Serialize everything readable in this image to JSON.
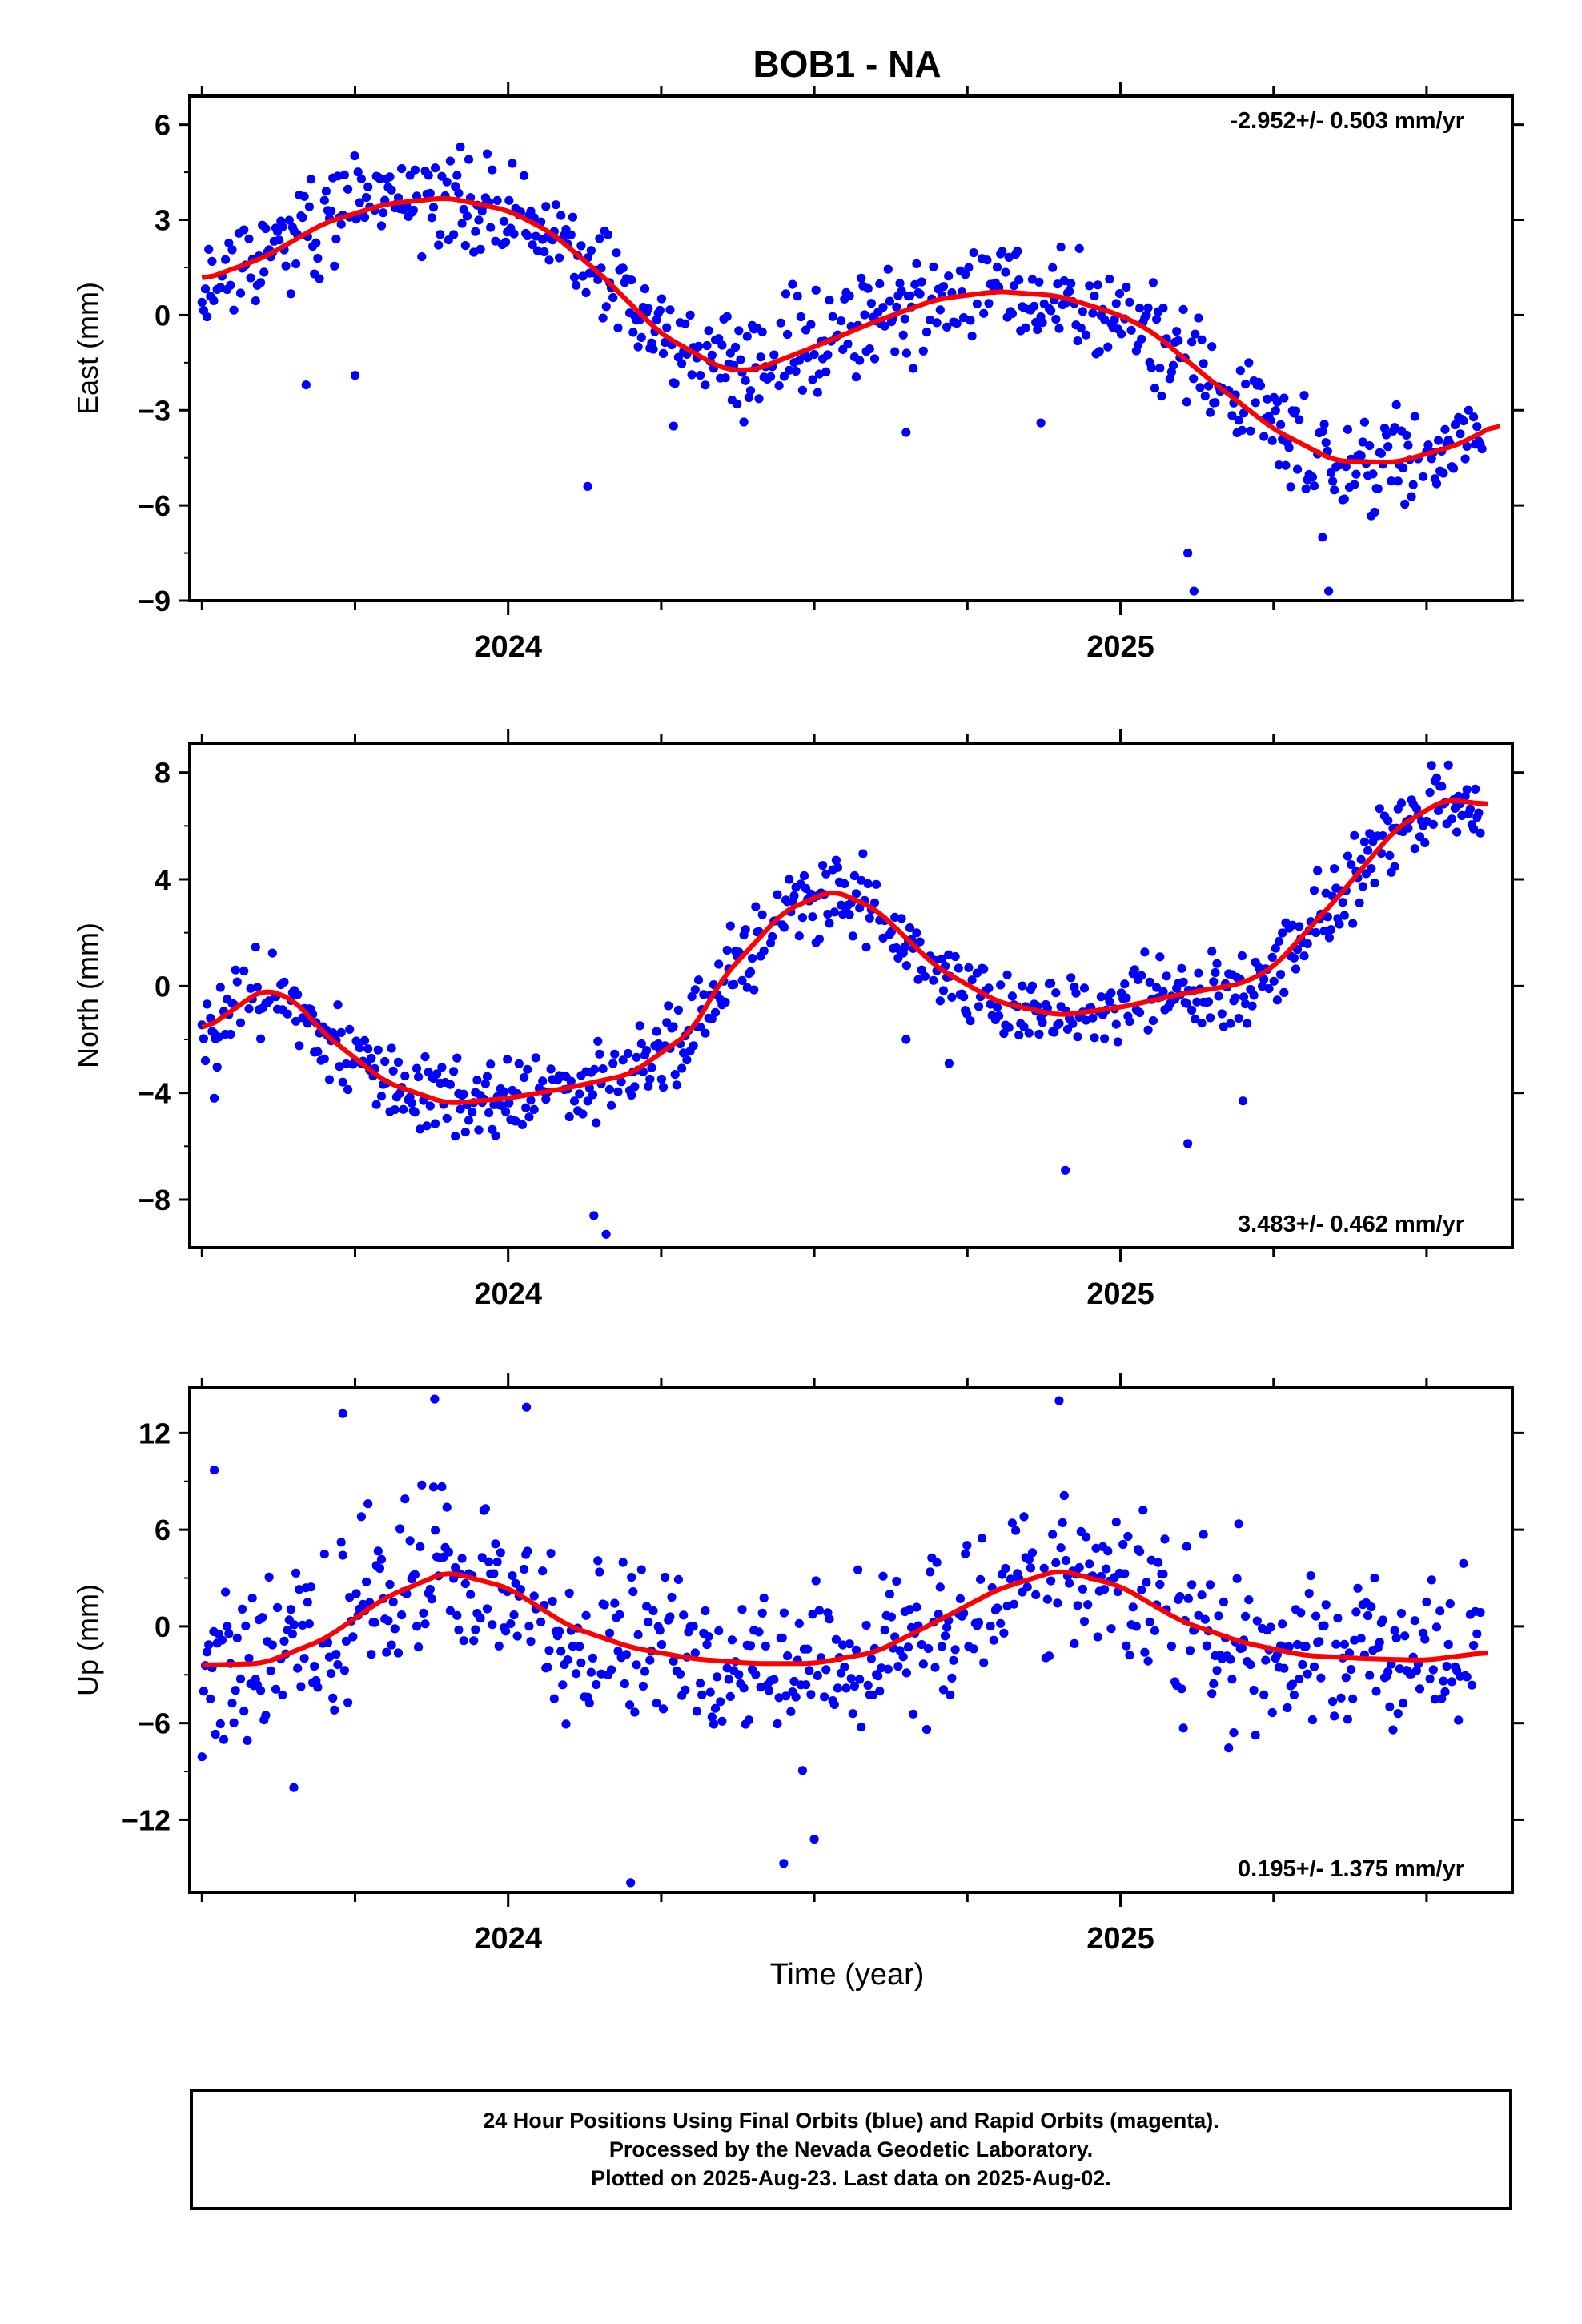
{
  "title": "BOB1 - NA",
  "time_label": "Time (year)",
  "footer": {
    "line1": "24 Hour Positions Using Final Orbits (blue) and Rapid Orbits (magenta).",
    "line2": "Processed by the Nevada Geodetic Laboratory.",
    "line3": "Plotted on 2025-Aug-23. Last data on 2025-Aug-02."
  },
  "colors": {
    "points": "#0000ff",
    "model": "#ff0000",
    "frame": "#000000"
  },
  "chart_data": [
    {
      "type": "scatter",
      "component": "east",
      "ylabel": "East (mm)",
      "ylim": [
        -9,
        6.9
      ],
      "yticks": [
        -9,
        -6,
        -3,
        0,
        3,
        6
      ],
      "xlim": [
        2023.48,
        2025.64
      ],
      "xticks": [
        2024,
        2025
      ],
      "rate_label": "-2.952+/- 0.503 mm/yr",
      "rate_position": "top-right",
      "seed": 11,
      "scatter_sd": 1.05,
      "model_curve": [
        [
          2023.5,
          1.1
        ],
        [
          2023.6,
          1.8
        ],
        [
          2023.7,
          2.9
        ],
        [
          2023.8,
          3.5
        ],
        [
          2023.9,
          3.7
        ],
        [
          2024.0,
          3.3
        ],
        [
          2024.07,
          2.6
        ],
        [
          2024.15,
          1.3
        ],
        [
          2024.25,
          -0.6
        ],
        [
          2024.35,
          -1.7
        ],
        [
          2024.4,
          -1.75
        ],
        [
          2024.5,
          -1.0
        ],
        [
          2024.6,
          -0.2
        ],
        [
          2024.7,
          0.5
        ],
        [
          2024.8,
          0.75
        ],
        [
          2024.9,
          0.6
        ],
        [
          2025.0,
          0.0
        ],
        [
          2025.05,
          -0.5
        ],
        [
          2025.15,
          -2.1
        ],
        [
          2025.25,
          -3.6
        ],
        [
          2025.35,
          -4.6
        ],
        [
          2025.45,
          -4.65
        ],
        [
          2025.55,
          -4.1
        ],
        [
          2025.62,
          -3.4
        ]
      ],
      "outliers": [
        [
          2023.67,
          -2.2
        ],
        [
          2023.75,
          -1.9
        ],
        [
          2024.13,
          -5.4
        ],
        [
          2024.27,
          -3.5
        ],
        [
          2024.87,
          -3.4
        ],
        [
          2025.11,
          -7.5
        ],
        [
          2025.12,
          -8.7
        ],
        [
          2025.33,
          -7.0
        ],
        [
          2025.34,
          -8.7
        ],
        [
          2024.65,
          -3.7
        ]
      ]
    },
    {
      "type": "scatter",
      "component": "north",
      "ylabel": "North (mm)",
      "ylim": [
        -9.8,
        9.1
      ],
      "yticks": [
        -8,
        -4,
        0,
        4,
        8
      ],
      "xlim": [
        2023.48,
        2025.64
      ],
      "xticks": [
        2024,
        2025
      ],
      "rate_label": "3.483+/- 0.462 mm/yr",
      "rate_position": "bottom-right",
      "seed": 23,
      "scatter_sd": 1.0,
      "model_curve": [
        [
          2023.5,
          -1.7
        ],
        [
          2023.55,
          -0.9
        ],
        [
          2023.6,
          -0.1
        ],
        [
          2023.65,
          -0.5
        ],
        [
          2023.7,
          -1.8
        ],
        [
          2023.8,
          -3.6
        ],
        [
          2023.9,
          -4.4
        ],
        [
          2024.0,
          -4.2
        ],
        [
          2024.1,
          -3.8
        ],
        [
          2024.2,
          -3.3
        ],
        [
          2024.3,
          -1.7
        ],
        [
          2024.35,
          0.3
        ],
        [
          2024.45,
          2.8
        ],
        [
          2024.53,
          3.6
        ],
        [
          2024.6,
          2.9
        ],
        [
          2024.7,
          0.7
        ],
        [
          2024.8,
          -0.6
        ],
        [
          2024.9,
          -1.1
        ],
        [
          2025.0,
          -0.8
        ],
        [
          2025.1,
          -0.3
        ],
        [
          2025.2,
          0.1
        ],
        [
          2025.25,
          0.7
        ],
        [
          2025.35,
          3.2
        ],
        [
          2025.45,
          5.9
        ],
        [
          2025.53,
          7.0
        ],
        [
          2025.6,
          6.8
        ]
      ],
      "outliers": [
        [
          2023.52,
          -4.2
        ],
        [
          2024.14,
          -8.6
        ],
        [
          2024.16,
          -9.3
        ],
        [
          2024.65,
          -2.0
        ],
        [
          2024.91,
          -6.9
        ],
        [
          2025.11,
          -5.9
        ],
        [
          2025.2,
          -4.3
        ],
        [
          2024.72,
          -2.9
        ]
      ]
    },
    {
      "type": "scatter",
      "component": "up",
      "ylabel": "Up (mm)",
      "ylim": [
        -16.5,
        14.8
      ],
      "yticks": [
        -12,
        -6,
        0,
        6,
        12
      ],
      "xlim": [
        2023.48,
        2025.64
      ],
      "xticks": [
        2024,
        2025
      ],
      "rate_label": "0.195+/- 1.375 mm/yr",
      "rate_position": "bottom-right",
      "seed": 37,
      "scatter_sd": 3.6,
      "model_curve": [
        [
          2023.5,
          -2.4
        ],
        [
          2023.6,
          -2.3
        ],
        [
          2023.7,
          -0.8
        ],
        [
          2023.8,
          1.8
        ],
        [
          2023.9,
          3.4
        ],
        [
          2024.0,
          2.4
        ],
        [
          2024.1,
          0.0
        ],
        [
          2024.2,
          -1.3
        ],
        [
          2024.3,
          -2.0
        ],
        [
          2024.4,
          -2.3
        ],
        [
          2024.5,
          -2.3
        ],
        [
          2024.6,
          -1.6
        ],
        [
          2024.7,
          0.3
        ],
        [
          2024.8,
          2.3
        ],
        [
          2024.9,
          3.5
        ],
        [
          2025.0,
          2.5
        ],
        [
          2025.1,
          0.3
        ],
        [
          2025.2,
          -1.0
        ],
        [
          2025.3,
          -1.8
        ],
        [
          2025.4,
          -2.0
        ],
        [
          2025.5,
          -2.1
        ],
        [
          2025.6,
          -1.6
        ]
      ],
      "outliers": [
        [
          2023.52,
          9.7
        ],
        [
          2023.73,
          13.2
        ],
        [
          2023.88,
          14.1
        ],
        [
          2024.03,
          13.6
        ],
        [
          2024.9,
          14.0
        ],
        [
          2024.2,
          -15.9
        ],
        [
          2024.45,
          -14.7
        ],
        [
          2024.5,
          -13.2
        ],
        [
          2023.65,
          -10.0
        ]
      ]
    }
  ]
}
